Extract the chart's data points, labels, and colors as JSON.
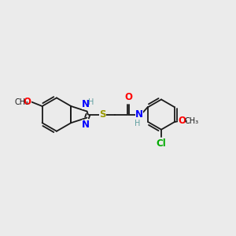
{
  "bg_color": "#ebebeb",
  "bond_color": "#1a1a1a",
  "N_color": "#0000ff",
  "O_color": "#ff0000",
  "S_color": "#999900",
  "Cl_color": "#00aa00",
  "H_color": "#5f9ea0",
  "font_size": 8.5,
  "small_font": 7.0,
  "lw": 1.3,
  "xlim": [
    0,
    10
  ],
  "ylim": [
    0,
    10
  ]
}
